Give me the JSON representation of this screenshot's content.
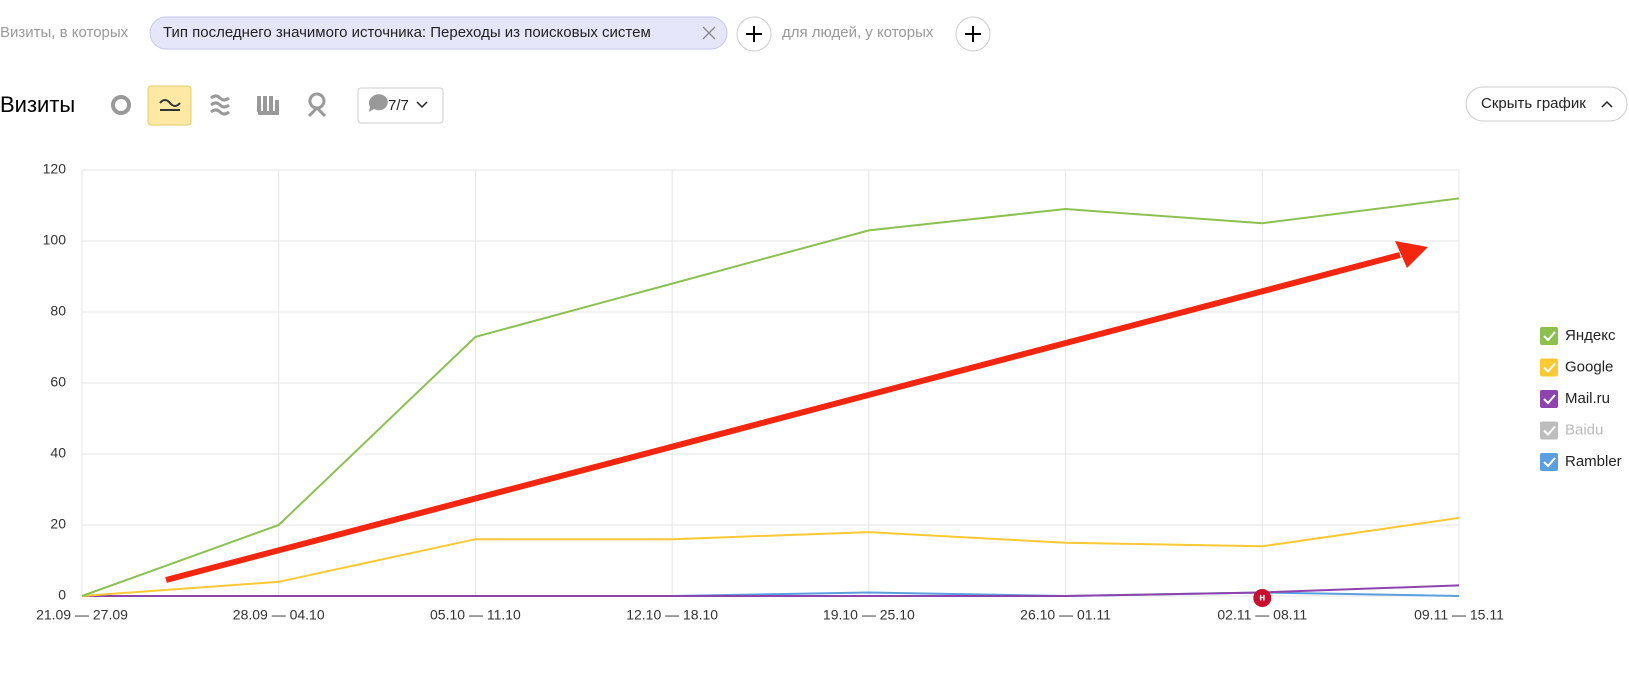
{
  "filter_bar": {
    "prefix": "Визиты, в которых",
    "chip": "Тип последнего значимого источника: Переходы из поисковых систем",
    "people": "для людей, у которых"
  },
  "toolbar": {
    "title": "Визиты",
    "comments": "7/7",
    "hide_chart": "Скрыть график"
  },
  "chart_data": {
    "type": "line",
    "categories": [
      "21.09 — 27.09",
      "28.09 — 04.10",
      "05.10 — 11.10",
      "12.10 — 18.10",
      "19.10 — 25.10",
      "26.10 — 01.11",
      "02.11 — 08.11",
      "09.11 — 15.11"
    ],
    "series": [
      {
        "name": "Яндекс",
        "color": "#8cc152",
        "visible": true,
        "values": [
          0,
          20,
          73,
          88,
          103,
          109,
          105,
          112
        ]
      },
      {
        "name": "Google",
        "color": "#fcc934",
        "visible": true,
        "values": [
          0,
          4,
          16,
          16,
          18,
          15,
          14,
          22
        ]
      },
      {
        "name": "Mail.ru",
        "color": "#8e44ad",
        "visible": true,
        "values": [
          0,
          0,
          0,
          0,
          0,
          0,
          1,
          3
        ]
      },
      {
        "name": "Baidu",
        "color": "#bdbdbd",
        "visible": false,
        "values": [
          0,
          0,
          0,
          0,
          0,
          0,
          0,
          0
        ]
      },
      {
        "name": "Rambler",
        "color": "#5b9fe0",
        "visible": true,
        "values": [
          0,
          0,
          0,
          0,
          1,
          0,
          1,
          0
        ]
      }
    ],
    "ylim": [
      0,
      120
    ],
    "yticks": [
      0,
      20,
      40,
      60,
      80,
      100,
      120
    ],
    "grid": true,
    "legend": "right",
    "event_marker": {
      "x": "02.11 — 08.11",
      "label": "н"
    }
  }
}
